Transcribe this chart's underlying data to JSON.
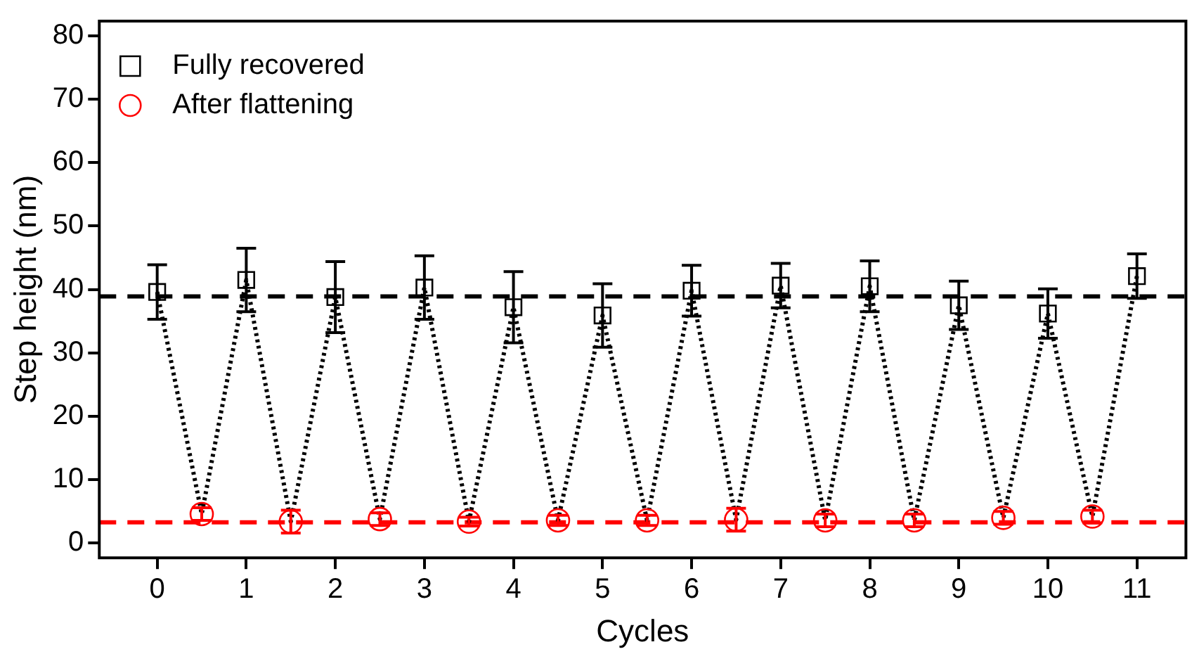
{
  "chart_data": {
    "type": "scatter",
    "xlabel": "Cycles",
    "ylabel": "Step height (nm)",
    "xlim": [
      -0.65,
      11.55
    ],
    "xticks": [
      0,
      1,
      2,
      3,
      4,
      5,
      6,
      7,
      8,
      9,
      10,
      11
    ],
    "ylim": [
      -2.3,
      82.3
    ],
    "yticks": [
      0,
      10,
      20,
      30,
      40,
      50,
      60,
      70,
      80
    ],
    "grid": false,
    "legend": "top left",
    "series": [
      {
        "type": "line",
        "color": "#000000",
        "line_style": "dotted",
        "marker": "none",
        "x": [
          0,
          0.5,
          1,
          1.5,
          2,
          2.5,
          3,
          3.5,
          4,
          4.5,
          5,
          5.5,
          6,
          6.5,
          7,
          7.5,
          8,
          8.5,
          9,
          9.5,
          10,
          10.5,
          11
        ],
        "values": [
          39.6,
          4.6,
          41.5,
          3.4,
          38.8,
          3.8,
          40.3,
          3.4,
          37.2,
          3.6,
          35.9,
          3.6,
          39.8,
          3.7,
          40.6,
          3.6,
          40.5,
          3.6,
          37.5,
          4,
          36.2,
          4.2,
          42.1
        ]
      },
      {
        "name": "Fully recovered",
        "color": "#000000",
        "marker": "square",
        "x": [
          0,
          1,
          2,
          3,
          4,
          5,
          6,
          7,
          8,
          9,
          10,
          11
        ],
        "values": [
          39.6,
          41.5,
          38.8,
          40.3,
          37.2,
          35.9,
          39.8,
          40.6,
          40.5,
          37.5,
          36.2,
          42.1
        ],
        "errors": [
          4.3,
          5,
          5.6,
          5,
          5.6,
          5,
          4,
          3.5,
          4,
          3.8,
          3.9,
          3.5
        ]
      },
      {
        "name": "After flattening",
        "color": "#ff0000",
        "marker": "circle",
        "x": [
          0.5,
          1.5,
          2.5,
          3.5,
          4.5,
          5.5,
          6.5,
          7.5,
          8.5,
          9.5,
          10.5
        ],
        "values": [
          4.6,
          3.4,
          3.8,
          3.4,
          3.6,
          3.6,
          3.7,
          3.6,
          3.6,
          4,
          4.2
        ],
        "errors": [
          1,
          1.8,
          1,
          0.7,
          0.8,
          0.8,
          1.8,
          1,
          1,
          1,
          1
        ]
      }
    ],
    "ref_lines": [
      {
        "axis": "y",
        "value": 38.9,
        "color": "#000000",
        "line_style": "dashed"
      },
      {
        "axis": "y",
        "value": 3.3,
        "color": "#ff0000",
        "line_style": "dashed"
      }
    ]
  }
}
